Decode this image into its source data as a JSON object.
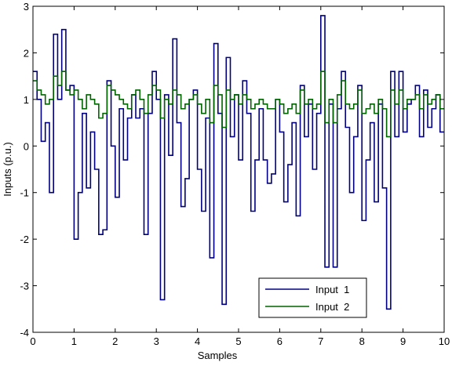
{
  "chart_data": {
    "type": "line",
    "title": "",
    "xlabel": "Samples",
    "ylabel": "Inputs (p.u.)",
    "xlim": [
      0,
      10
    ],
    "ylim": [
      -4,
      3
    ],
    "xticks": [
      "0",
      "1",
      "2",
      "3",
      "4",
      "5",
      "6",
      "7",
      "8",
      "9",
      "10"
    ],
    "yticks": [
      "3",
      "2",
      "1",
      "0",
      "-1",
      "-2",
      "-3",
      "-4"
    ],
    "grid": false,
    "legend_position": "bottom-center",
    "step": true,
    "x": [
      0,
      0.1,
      0.2,
      0.3,
      0.4,
      0.5,
      0.6,
      0.7,
      0.8,
      0.9,
      1,
      1.1,
      1.2,
      1.3,
      1.4,
      1.5,
      1.6,
      1.7,
      1.8,
      1.9,
      2,
      2.1,
      2.2,
      2.3,
      2.4,
      2.5,
      2.6,
      2.7,
      2.8,
      2.9,
      3,
      3.1,
      3.2,
      3.3,
      3.4,
      3.5,
      3.6,
      3.7,
      3.8,
      3.9,
      4,
      4.1,
      4.2,
      4.3,
      4.4,
      4.5,
      4.6,
      4.7,
      4.8,
      4.9,
      5,
      5.1,
      5.2,
      5.3,
      5.4,
      5.5,
      5.6,
      5.7,
      5.8,
      5.9,
      6,
      6.1,
      6.2,
      6.3,
      6.4,
      6.5,
      6.6,
      6.7,
      6.8,
      6.9,
      7,
      7.1,
      7.2,
      7.3,
      7.4,
      7.5,
      7.6,
      7.7,
      7.8,
      7.9,
      8,
      8.1,
      8.2,
      8.3,
      8.4,
      8.5,
      8.6,
      8.7,
      8.8,
      8.9,
      9,
      9.1,
      9.2,
      9.3,
      9.4,
      9.5,
      9.6,
      9.7,
      9.8,
      9.9
    ],
    "series": [
      {
        "name": "Input  1",
        "color": "#000080",
        "values": [
          1.6,
          1.0,
          0.1,
          0.5,
          -1.0,
          2.4,
          1.0,
          2.5,
          1.2,
          1.3,
          -2.0,
          -1.0,
          0.7,
          -0.9,
          0.3,
          -0.5,
          -1.9,
          -1.8,
          1.4,
          0.0,
          -1.1,
          0.8,
          -0.3,
          0.6,
          1.1,
          0.6,
          0.8,
          -1.9,
          0.7,
          1.6,
          1.0,
          -3.3,
          1.1,
          -0.2,
          2.3,
          0.5,
          -1.3,
          -0.7,
          1.0,
          1.2,
          -0.5,
          -1.4,
          0.6,
          -2.4,
          2.2,
          0.7,
          -3.4,
          1.9,
          0.2,
          1.1,
          -0.3,
          1.4,
          0.7,
          -1.4,
          -0.3,
          0.8,
          -0.3,
          -0.8,
          -0.6,
          1.0,
          0.3,
          -1.2,
          -0.4,
          0.5,
          -1.5,
          1.3,
          0.2,
          0.9,
          -0.5,
          0.7,
          2.8,
          -2.6,
          0.9,
          -2.6,
          0.8,
          1.6,
          0.4,
          -1.0,
          0.2,
          1.3,
          -1.6,
          -0.3,
          0.5,
          -1.2,
          0.9,
          -0.9,
          -3.5,
          1.6,
          0.2,
          1.6,
          0.3,
          0.9,
          1.0,
          1.3,
          0.2,
          1.2,
          0.4,
          0.8,
          1.1,
          0.3
        ]
      },
      {
        "name": "Input  2",
        "color": "#006400",
        "values": [
          1.4,
          1.2,
          1.1,
          0.9,
          1.0,
          1.5,
          1.3,
          1.6,
          1.2,
          1.1,
          1.2,
          1.0,
          0.8,
          1.1,
          1.0,
          0.9,
          0.6,
          0.7,
          1.3,
          1.2,
          1.1,
          1.0,
          0.9,
          0.8,
          1.1,
          1.2,
          1.0,
          0.7,
          1.1,
          1.3,
          1.2,
          0.6,
          1.0,
          0.9,
          1.2,
          1.1,
          0.8,
          0.9,
          1.0,
          1.1,
          0.9,
          0.7,
          1.0,
          0.5,
          1.3,
          1.1,
          0.4,
          1.2,
          1.0,
          1.1,
          0.9,
          1.1,
          1.0,
          0.8,
          0.9,
          1.0,
          0.9,
          0.8,
          0.8,
          1.0,
          0.9,
          0.7,
          0.8,
          0.9,
          0.7,
          1.2,
          0.9,
          1.0,
          0.8,
          0.9,
          1.6,
          0.5,
          1.0,
          0.5,
          1.1,
          1.4,
          0.9,
          0.8,
          0.9,
          1.2,
          0.7,
          0.8,
          0.9,
          0.7,
          1.0,
          0.8,
          0.2,
          1.2,
          0.9,
          1.2,
          0.8,
          1.0,
          1.0,
          1.1,
          0.8,
          1.1,
          0.9,
          1.0,
          1.1,
          0.8
        ]
      }
    ]
  }
}
